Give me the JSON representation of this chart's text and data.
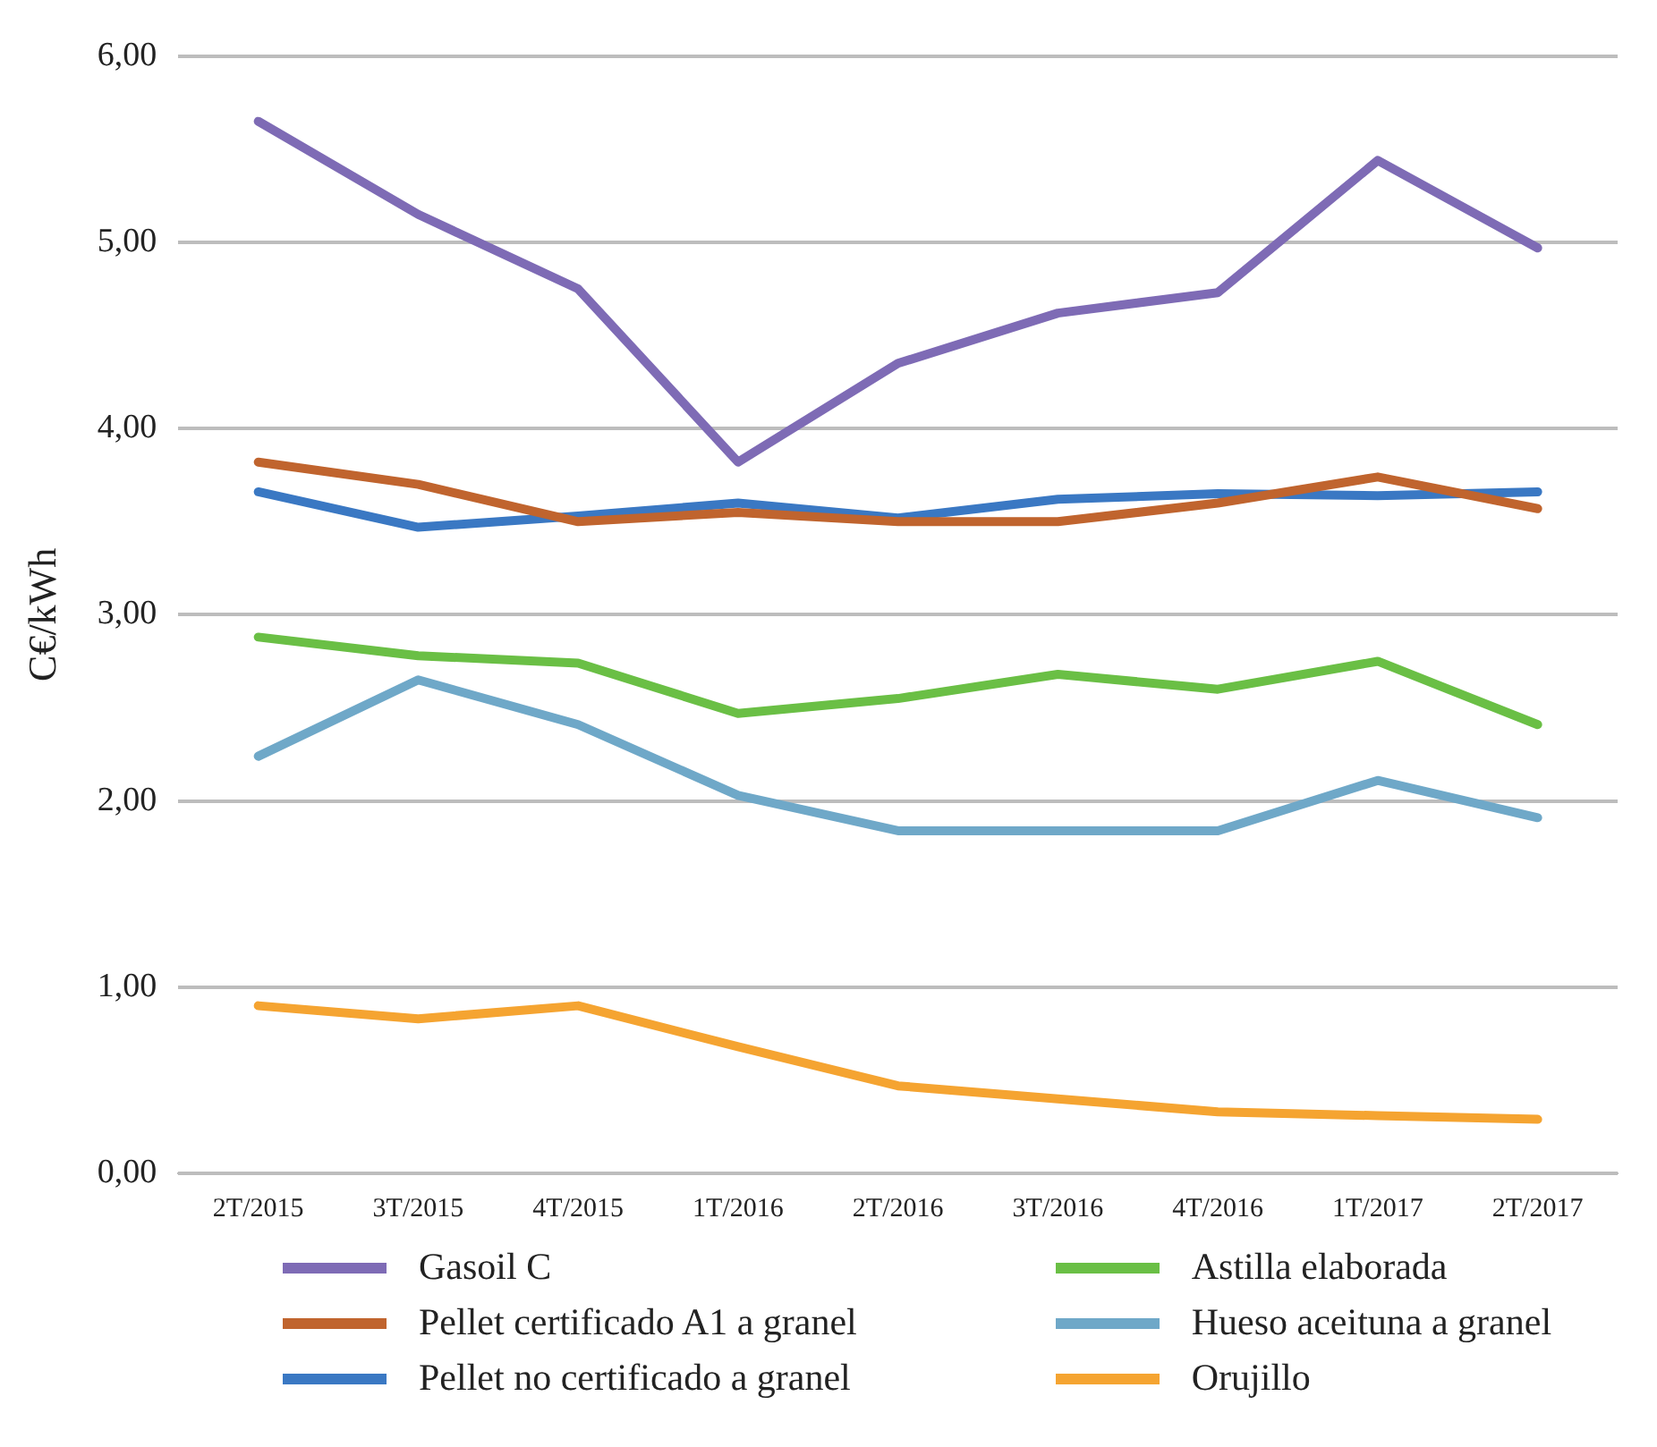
{
  "chart_data": {
    "type": "line",
    "ylabel": "C€/kWh",
    "categories": [
      "2T/2015",
      "3T/2015",
      "4T/2015",
      "1T/2016",
      "2T/2016",
      "3T/2016",
      "4T/2016",
      "1T/2017",
      "2T/2017"
    ],
    "series": [
      {
        "name": "Gasoil C",
        "color": "#7e6bb5",
        "values": [
          5.65,
          5.15,
          4.75,
          3.82,
          4.35,
          4.62,
          4.73,
          5.44,
          4.97
        ]
      },
      {
        "name": "Pellet certificado A1 a granel",
        "color": "#c0642e",
        "values": [
          3.82,
          3.7,
          3.5,
          3.55,
          3.5,
          3.5,
          3.6,
          3.74,
          3.57
        ]
      },
      {
        "name": "Pellet no certificado a granel",
        "color": "#3a78c3",
        "values": [
          3.66,
          3.47,
          3.53,
          3.6,
          3.52,
          3.62,
          3.65,
          3.64,
          3.66
        ]
      },
      {
        "name": "Astilla elaborada",
        "color": "#6abf45",
        "values": [
          2.88,
          2.78,
          2.74,
          2.47,
          2.55,
          2.68,
          2.6,
          2.75,
          2.41
        ]
      },
      {
        "name": "Hueso aceituna a granel",
        "color": "#6fa8c8",
        "values": [
          2.24,
          2.65,
          2.41,
          2.03,
          1.84,
          1.84,
          1.84,
          2.11,
          1.91
        ]
      },
      {
        "name": "Orujillo",
        "color": "#f5a431",
        "values": [
          0.9,
          0.83,
          0.9,
          0.68,
          0.47,
          0.4,
          0.33,
          0.31,
          0.29
        ]
      }
    ],
    "ylim": [
      0,
      6
    ],
    "yticks": [
      {
        "value": 0,
        "label": "0,00"
      },
      {
        "value": 1,
        "label": "1,00"
      },
      {
        "value": 2,
        "label": "2,00"
      },
      {
        "value": 3,
        "label": "3,00"
      },
      {
        "value": 4,
        "label": "4,00"
      },
      {
        "value": 5,
        "label": "5,00"
      },
      {
        "value": 6,
        "label": "6,00"
      }
    ],
    "grid": "y",
    "legend": "bottom",
    "marker": "none",
    "line_style": "solid"
  }
}
